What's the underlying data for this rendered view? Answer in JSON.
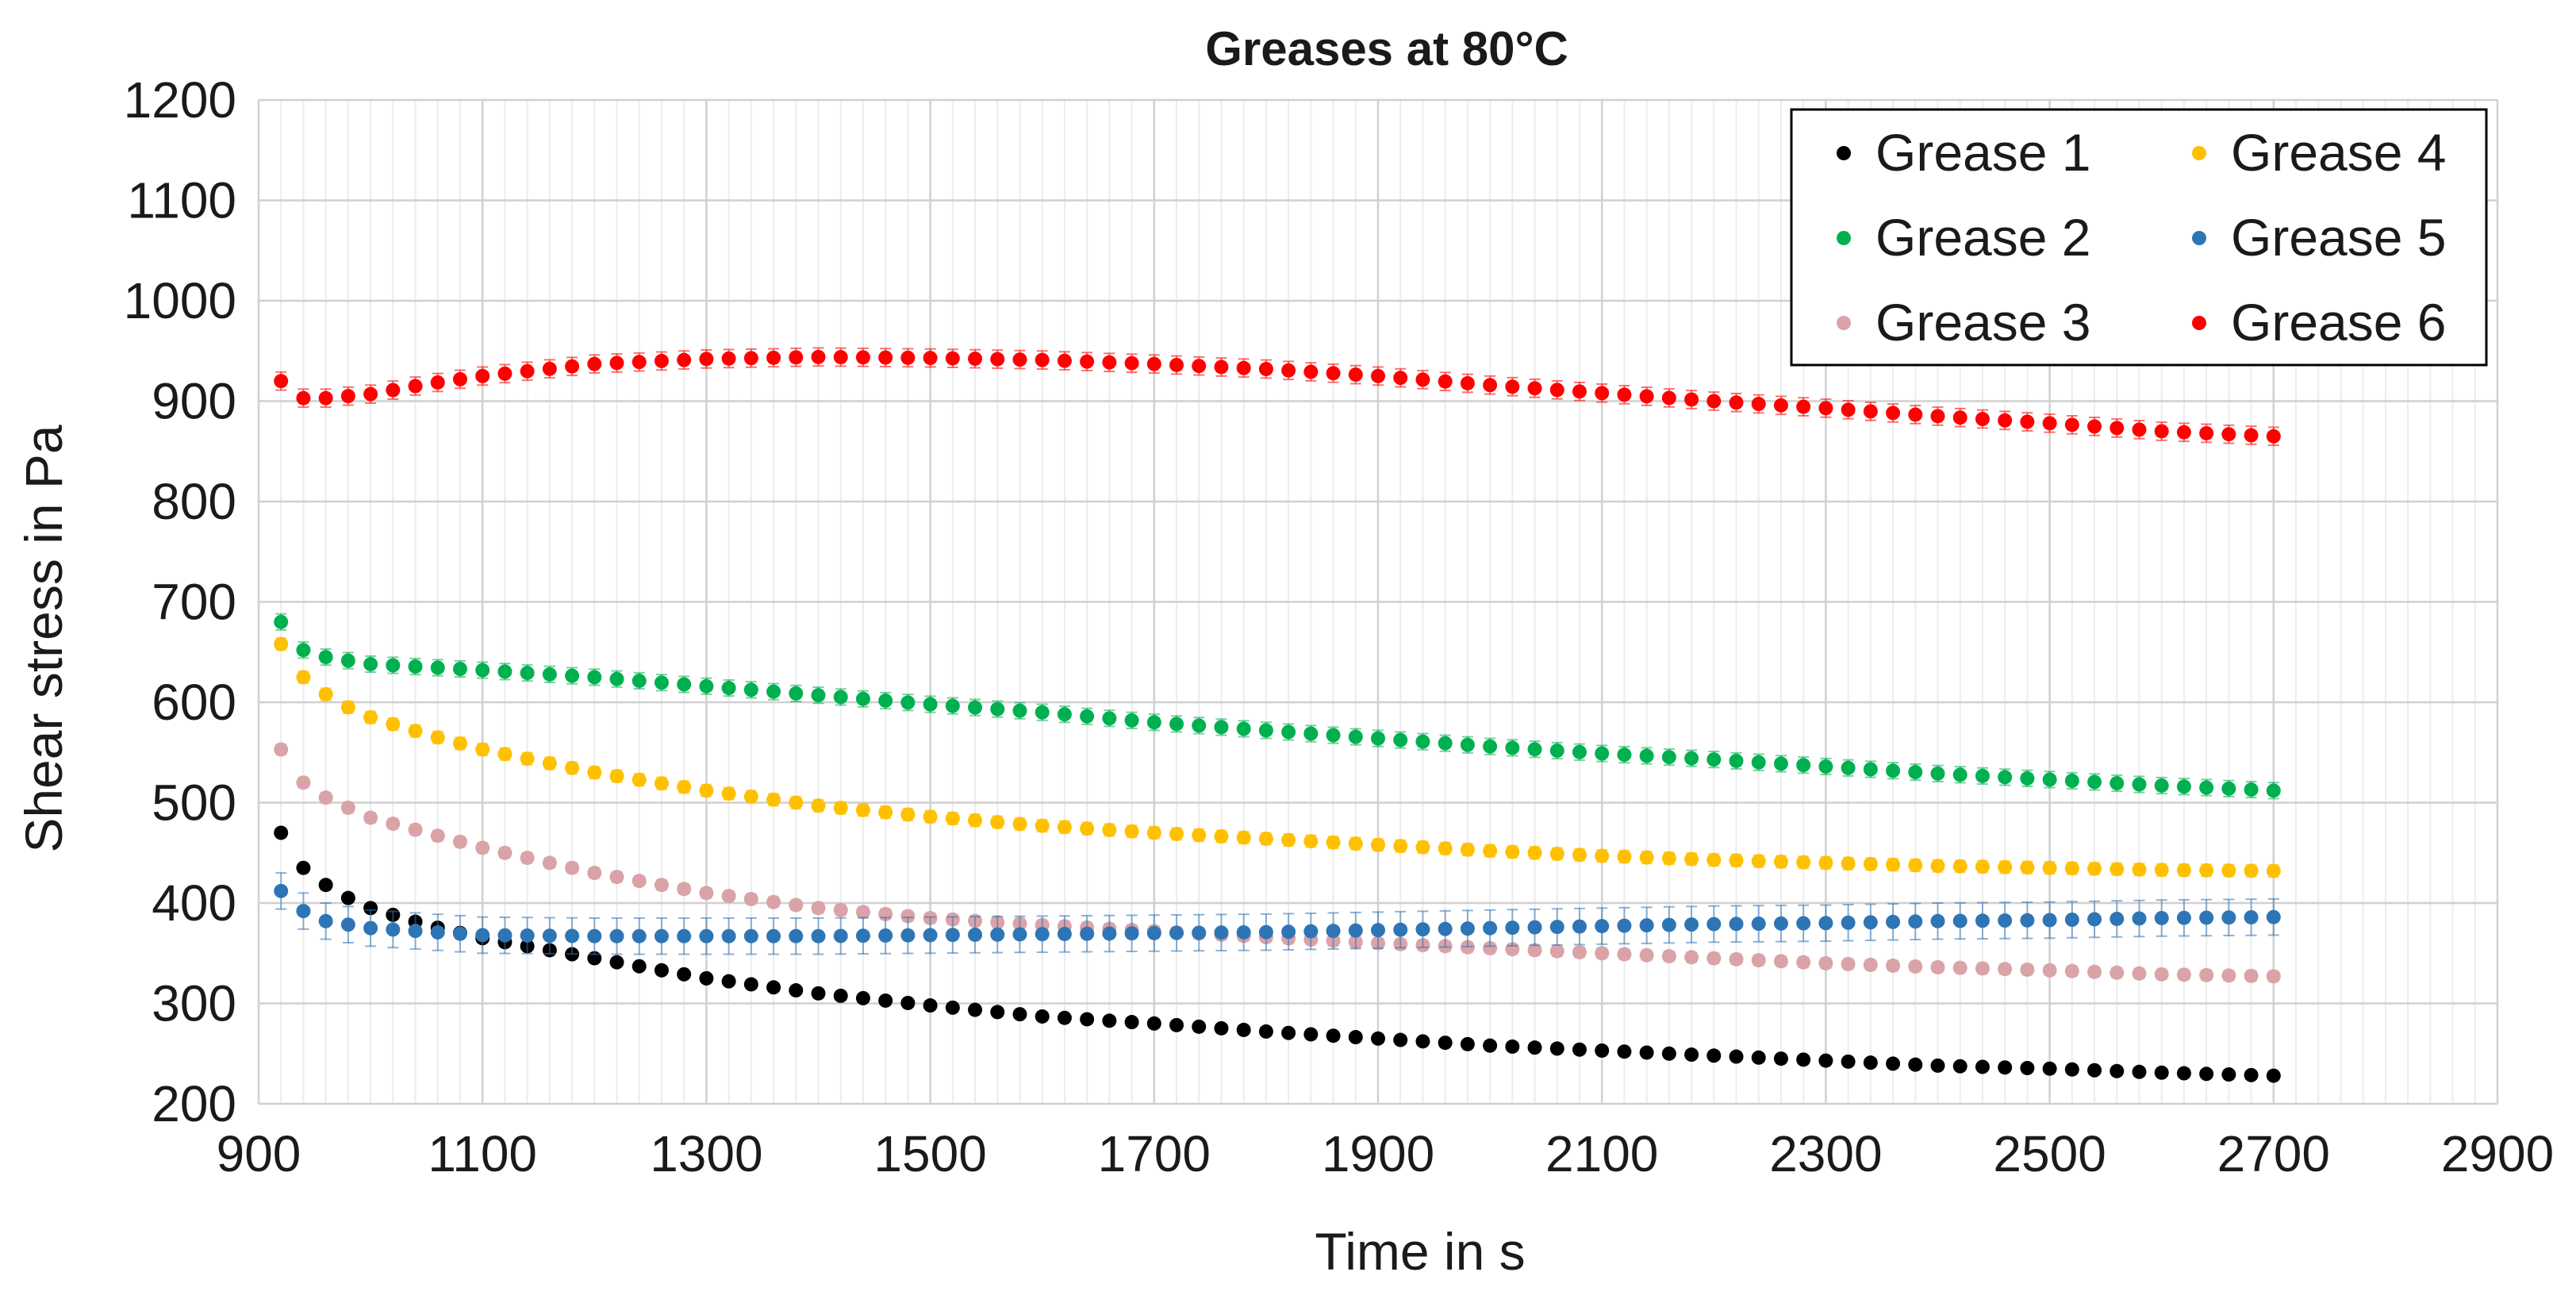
{
  "chart_data": {
    "type": "scatter",
    "title": "Greases at 80°C",
    "xlabel": "Time in s",
    "ylabel": "Shear stress in Pa",
    "xlim": [
      900,
      2900
    ],
    "ylim": [
      200,
      1200
    ],
    "xticks": [
      900,
      1100,
      1300,
      1500,
      1700,
      1900,
      2100,
      2300,
      2500,
      2700,
      2900
    ],
    "yticks": [
      200,
      300,
      400,
      500,
      600,
      700,
      800,
      900,
      1000,
      1100,
      1200
    ],
    "grid": true,
    "error_bars": true,
    "legend_position": "top-right",
    "x_start": 920,
    "x_step": 20,
    "x_end": 2700,
    "series": [
      {
        "name": "Grease 1",
        "color": "#000000",
        "anchors": [
          [
            920,
            470
          ],
          [
            940,
            435
          ],
          [
            960,
            418
          ],
          [
            980,
            405
          ],
          [
            1000,
            395
          ],
          [
            1050,
            378
          ],
          [
            1100,
            365
          ],
          [
            1200,
            345
          ],
          [
            1300,
            325
          ],
          [
            1400,
            310
          ],
          [
            1500,
            298
          ],
          [
            1600,
            287
          ],
          [
            1700,
            280
          ],
          [
            1800,
            272
          ],
          [
            1900,
            265
          ],
          [
            2000,
            258
          ],
          [
            2100,
            253
          ],
          [
            2200,
            248
          ],
          [
            2300,
            243
          ],
          [
            2400,
            238
          ],
          [
            2500,
            235
          ],
          [
            2600,
            231
          ],
          [
            2700,
            228
          ]
        ],
        "error": 4
      },
      {
        "name": "Grease 2",
        "color": "#00b050",
        "anchors": [
          [
            920,
            680
          ],
          [
            940,
            652
          ],
          [
            960,
            645
          ],
          [
            1000,
            638
          ],
          [
            1100,
            632
          ],
          [
            1200,
            625
          ],
          [
            1300,
            616
          ],
          [
            1400,
            607
          ],
          [
            1500,
            598
          ],
          [
            1600,
            590
          ],
          [
            1700,
            580
          ],
          [
            1800,
            572
          ],
          [
            1900,
            564
          ],
          [
            2000,
            556
          ],
          [
            2100,
            549
          ],
          [
            2200,
            543
          ],
          [
            2300,
            536
          ],
          [
            2400,
            529
          ],
          [
            2500,
            523
          ],
          [
            2600,
            517
          ],
          [
            2700,
            512
          ]
        ],
        "error": 8
      },
      {
        "name": "Grease 3",
        "color": "#d9a3a8",
        "anchors": [
          [
            920,
            553
          ],
          [
            940,
            520
          ],
          [
            960,
            505
          ],
          [
            980,
            495
          ],
          [
            1000,
            485
          ],
          [
            1100,
            455
          ],
          [
            1200,
            430
          ],
          [
            1300,
            410
          ],
          [
            1400,
            395
          ],
          [
            1500,
            385
          ],
          [
            1600,
            378
          ],
          [
            1700,
            372
          ],
          [
            1800,
            366
          ],
          [
            1900,
            360
          ],
          [
            2000,
            355
          ],
          [
            2100,
            350
          ],
          [
            2200,
            345
          ],
          [
            2300,
            340
          ],
          [
            2400,
            336
          ],
          [
            2500,
            333
          ],
          [
            2600,
            329
          ],
          [
            2700,
            327
          ]
        ],
        "error": 5
      },
      {
        "name": "Grease 4",
        "color": "#ffc000",
        "anchors": [
          [
            920,
            658
          ],
          [
            940,
            625
          ],
          [
            960,
            608
          ],
          [
            980,
            595
          ],
          [
            1000,
            585
          ],
          [
            1050,
            568
          ],
          [
            1100,
            553
          ],
          [
            1200,
            530
          ],
          [
            1300,
            512
          ],
          [
            1400,
            497
          ],
          [
            1500,
            486
          ],
          [
            1600,
            477
          ],
          [
            1700,
            470
          ],
          [
            1800,
            464
          ],
          [
            1900,
            458
          ],
          [
            2000,
            452
          ],
          [
            2100,
            447
          ],
          [
            2200,
            443
          ],
          [
            2300,
            440
          ],
          [
            2400,
            437
          ],
          [
            2500,
            435
          ],
          [
            2600,
            433
          ],
          [
            2700,
            432
          ]
        ],
        "error": 6
      },
      {
        "name": "Grease 5",
        "color": "#2e75b6",
        "anchors": [
          [
            920,
            412
          ],
          [
            940,
            392
          ],
          [
            960,
            382
          ],
          [
            1000,
            375
          ],
          [
            1100,
            368
          ],
          [
            1200,
            367
          ],
          [
            1300,
            367
          ],
          [
            1400,
            367
          ],
          [
            1500,
            368
          ],
          [
            1600,
            369
          ],
          [
            1700,
            370
          ],
          [
            1800,
            371
          ],
          [
            1900,
            373
          ],
          [
            2000,
            375
          ],
          [
            2100,
            377
          ],
          [
            2200,
            379
          ],
          [
            2300,
            380
          ],
          [
            2400,
            382
          ],
          [
            2500,
            383
          ],
          [
            2600,
            385
          ],
          [
            2700,
            386
          ]
        ],
        "error": 18
      },
      {
        "name": "Grease 6",
        "color": "#ff0000",
        "anchors": [
          [
            920,
            920
          ],
          [
            940,
            903
          ],
          [
            960,
            903
          ],
          [
            1000,
            907
          ],
          [
            1050,
            917
          ],
          [
            1100,
            925
          ],
          [
            1200,
            937
          ],
          [
            1300,
            942
          ],
          [
            1400,
            944
          ],
          [
            1500,
            943
          ],
          [
            1600,
            941
          ],
          [
            1700,
            937
          ],
          [
            1800,
            932
          ],
          [
            1900,
            925
          ],
          [
            2000,
            916
          ],
          [
            2100,
            908
          ],
          [
            2200,
            900
          ],
          [
            2300,
            893
          ],
          [
            2400,
            885
          ],
          [
            2500,
            878
          ],
          [
            2600,
            870
          ],
          [
            2700,
            865
          ]
        ],
        "error": 9
      }
    ]
  }
}
